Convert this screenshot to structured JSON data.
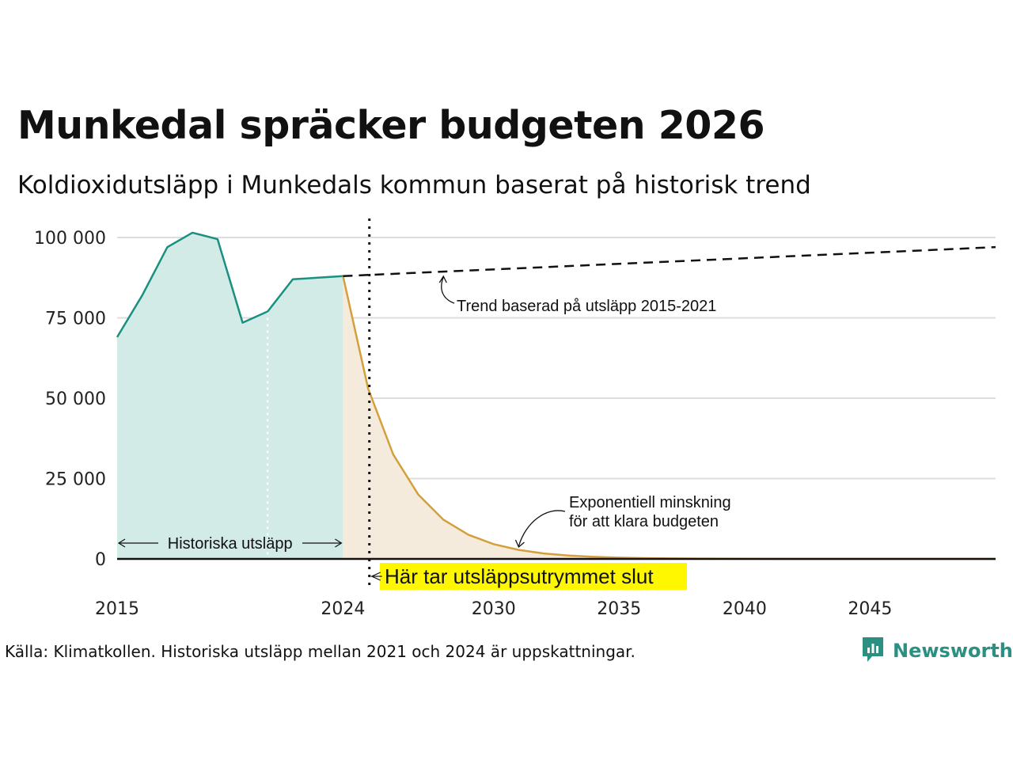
{
  "title": "Munkedal spräcker budgeten 2026",
  "subtitle": "Koldioxidutsläpp i Munkedals kommun baserat på historisk trend",
  "source": "Källa: Klimatkollen. Historiska utsläpp mellan 2021 och 2024 är uppskattningar.",
  "brand": {
    "name": "Newsworthy",
    "icon": "newsworthy-logo-icon",
    "color": "#2b8f82"
  },
  "chart_data": {
    "type": "area",
    "xlim": [
      2015,
      2050
    ],
    "ylim": [
      0,
      100000
    ],
    "y_ticks": [
      {
        "value": 0,
        "label": "0"
      },
      {
        "value": 25000,
        "label": "25 000"
      },
      {
        "value": 50000,
        "label": "50 000"
      },
      {
        "value": 75000,
        "label": "75 000"
      },
      {
        "value": 100000,
        "label": "100 000"
      }
    ],
    "x_ticks": [
      {
        "value": 2015,
        "label": "2015"
      },
      {
        "value": 2024,
        "label": "2024"
      },
      {
        "value": 2030,
        "label": "2030"
      },
      {
        "value": 2035,
        "label": "2035"
      },
      {
        "value": 2040,
        "label": "2040"
      },
      {
        "value": 2045,
        "label": "2045"
      }
    ],
    "grid": true,
    "series": [
      {
        "color": "#1a9080",
        "fill": "#d3ebe7",
        "style": "solid",
        "x": [
          2015,
          2016,
          2017,
          2018,
          2019,
          2020,
          2021,
          2022,
          2023,
          2024
        ],
        "values": [
          69000,
          82000,
          97000,
          101500,
          99500,
          73500,
          77000,
          87000,
          87500,
          88000
        ]
      },
      {
        "color": "#d4a03c",
        "fill": "#f5ebdc",
        "style": "solid",
        "x": [
          2024,
          2025,
          2026,
          2027,
          2028,
          2029,
          2030,
          2031,
          2032,
          2033,
          2034,
          2035,
          2036,
          2037,
          2038,
          2039,
          2040,
          2042,
          2045,
          2050
        ],
        "values": [
          88000,
          53000,
          32500,
          20000,
          12200,
          7500,
          4600,
          2800,
          1700,
          1050,
          650,
          400,
          250,
          150,
          90,
          55,
          35,
          15,
          5,
          0
        ]
      },
      {
        "color": "#111111",
        "style": "dashed",
        "x": [
          2024,
          2050
        ],
        "values": [
          88000,
          97000
        ]
      }
    ],
    "annotations": {
      "historical_label": "Historiska utsläpp",
      "historical_range": [
        2015,
        2024
      ],
      "historical_estimate_start": 2021,
      "trend_label": "Trend baserad på utsläpp 2015-2021",
      "trend_arrow_year": 2028,
      "decline_label_line1": "Exponentiell minskning",
      "decline_label_line2": "för att klara budgeten",
      "decline_arrow_year": 2031,
      "budget_end_label": "Här tar utsläppsutrymmet slut",
      "budget_end_year": 2025.05,
      "budget_end_highlight": "#fff700"
    }
  }
}
